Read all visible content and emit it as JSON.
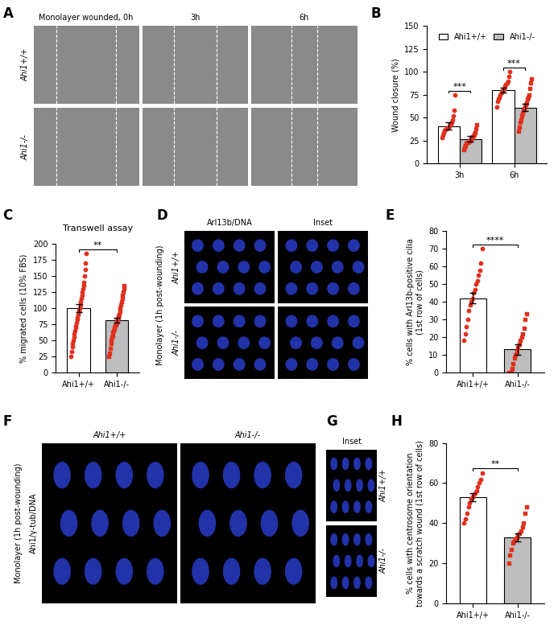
{
  "image_panels": [
    {
      "panel": "A",
      "column_titles": [
        "Monolayer wounded, 0h",
        "3h",
        "6h"
      ],
      "row_labels": [
        "Ahi1+/+",
        "Ahi1-/-"
      ]
    },
    {
      "panel": "D",
      "column_titles": [
        "Arl13b/DNA",
        "Inset"
      ],
      "row_labels": [
        "Ahi1+/+",
        "Ahi1-/-"
      ],
      "side_label": "Monolayer (1h post-wounding)"
    },
    {
      "panel": "F",
      "column_titles": [
        "Ahi1+/+",
        "Ahi1-/-"
      ],
      "stain": "Ahi1/γ-tub/DNA",
      "side_label": "Monolayer (1h post-wounding)"
    },
    {
      "panel": "G",
      "title": "Inset",
      "row_labels": [
        "Ahi1+/+",
        "Ahi1-/-"
      ]
    }
  ],
  "chart_data": [
    {
      "panel": "B",
      "type": "bar",
      "ylabel": "Wound closure (%)",
      "categories": [
        "3h",
        "6h"
      ],
      "ylim": [
        0,
        150
      ],
      "yticks": [
        0,
        25,
        50,
        75,
        100,
        125,
        150
      ],
      "legend": "top",
      "significance": [
        "***",
        "***"
      ],
      "series": [
        {
          "name": "Ahi1+/+",
          "color": "#ffffff",
          "marker": "o",
          "values": [
            41,
            80
          ],
          "errors": [
            4,
            3
          ],
          "points": [
            [
              28,
              31,
              34,
              36,
              37,
              38,
              39,
              40,
              41,
              42,
              43,
              45,
              48,
              52,
              58,
              75
            ],
            [
              62,
              68,
              70,
              72,
              75,
              77,
              79,
              80,
              82,
              84,
              86,
              88,
              90,
              95,
              100
            ]
          ]
        },
        {
          "name": "Ahi1-/-",
          "color": "#bdbdbd",
          "marker": "s",
          "values": [
            27,
            61
          ],
          "errors": [
            3,
            4
          ],
          "points": [
            [
              15,
              18,
              20,
              22,
              23,
              24,
              25,
              26,
              27,
              28,
              29,
              30,
              32,
              34,
              38,
              42
            ],
            [
              35,
              40,
              45,
              48,
              52,
              55,
              58,
              60,
              62,
              64,
              66,
              70,
              72,
              75,
              82,
              88,
              92
            ]
          ]
        }
      ]
    },
    {
      "panel": "C",
      "type": "bar",
      "title": "Transwell assay",
      "ylabel": "% migrated cells (10% FBS)",
      "categories": [
        "Ahi1+/+",
        "Ahi1-/-"
      ],
      "values": [
        100,
        81
      ],
      "errors": [
        6,
        4
      ],
      "colors": [
        "#ffffff",
        "#bdbdbd"
      ],
      "ylim": [
        0,
        200
      ],
      "yticks": [
        0,
        25,
        50,
        75,
        100,
        125,
        150,
        175,
        200
      ],
      "significance": "**",
      "points": [
        [
          25,
          32,
          40,
          45,
          50,
          55,
          60,
          65,
          70,
          72,
          78,
          82,
          85,
          90,
          95,
          98,
          100,
          105,
          110,
          115,
          120,
          125,
          130,
          135,
          140,
          150,
          160,
          170,
          185
        ],
        [
          25,
          30,
          38,
          45,
          50,
          55,
          58,
          62,
          65,
          68,
          70,
          72,
          75,
          78,
          80,
          82,
          85,
          88,
          90,
          95,
          100,
          105,
          110,
          115,
          120,
          125,
          130,
          135
        ]
      ]
    },
    {
      "panel": "E",
      "type": "bar",
      "ylabel": "% cells with Arl13b-positive cilia\n(1st row of cells)",
      "categories": [
        "Ahi1+/+",
        "Ahi1-/-"
      ],
      "values": [
        42,
        13
      ],
      "errors": [
        3,
        3
      ],
      "colors": [
        "#ffffff",
        "#bdbdbd"
      ],
      "ylim": [
        0,
        80
      ],
      "yticks": [
        0,
        10,
        20,
        30,
        40,
        50,
        60,
        70,
        80
      ],
      "significance": "****",
      "points": [
        [
          18,
          22,
          26,
          30,
          35,
          38,
          40,
          42,
          45,
          47,
          50,
          52,
          55,
          58,
          62,
          70
        ],
        [
          0,
          0,
          0,
          2,
          5,
          8,
          10,
          12,
          14,
          16,
          18,
          20,
          22,
          25,
          30,
          33
        ]
      ]
    },
    {
      "panel": "H",
      "type": "bar",
      "ylabel": "% cells with centrosome orientation\ntowards a scratch wound (1st row of cells)",
      "categories": [
        "Ahi1+/+",
        "Ahi1-/-"
      ],
      "values": [
        53,
        33
      ],
      "errors": [
        2,
        2
      ],
      "colors": [
        "#ffffff",
        "#bdbdbd"
      ],
      "ylim": [
        0,
        80
      ],
      "yticks": [
        0,
        20,
        40,
        60,
        80
      ],
      "significance": "**",
      "points": [
        [
          40,
          42,
          45,
          48,
          50,
          52,
          53,
          54,
          55,
          56,
          58,
          60,
          62,
          65
        ],
        [
          20,
          24,
          27,
          30,
          31,
          32,
          33,
          34,
          35,
          36,
          38,
          40,
          45,
          48
        ]
      ]
    }
  ]
}
